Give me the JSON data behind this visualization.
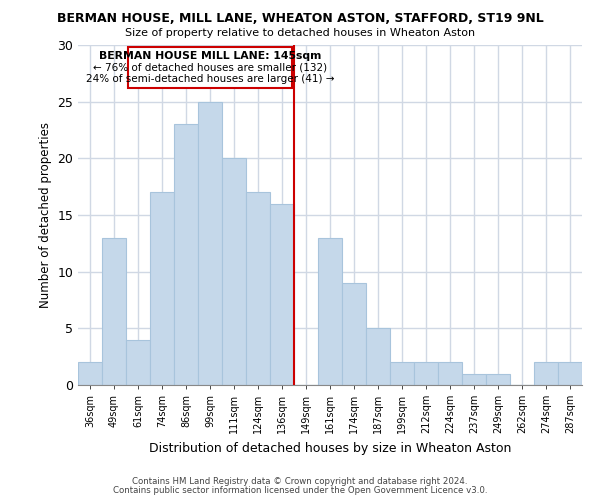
{
  "title": "BERMAN HOUSE, MILL LANE, WHEATON ASTON, STAFFORD, ST19 9NL",
  "subtitle": "Size of property relative to detached houses in Wheaton Aston",
  "xlabel": "Distribution of detached houses by size in Wheaton Aston",
  "ylabel": "Number of detached properties",
  "bin_labels": [
    "36sqm",
    "49sqm",
    "61sqm",
    "74sqm",
    "86sqm",
    "99sqm",
    "111sqm",
    "124sqm",
    "136sqm",
    "149sqm",
    "161sqm",
    "174sqm",
    "187sqm",
    "199sqm",
    "212sqm",
    "224sqm",
    "237sqm",
    "249sqm",
    "262sqm",
    "274sqm",
    "287sqm"
  ],
  "bar_heights": [
    2,
    13,
    4,
    17,
    23,
    25,
    20,
    17,
    16,
    0,
    13,
    9,
    5,
    2,
    2,
    2,
    1,
    1,
    0,
    2,
    2
  ],
  "bar_color": "#c5d8ea",
  "bar_edge_color": "#a8c4dc",
  "vline_color": "#cc0000",
  "ylim": [
    0,
    30
  ],
  "yticks": [
    0,
    5,
    10,
    15,
    20,
    25,
    30
  ],
  "annotation_title": "BERMAN HOUSE MILL LANE: 145sqm",
  "annotation_line1": "← 76% of detached houses are smaller (132)",
  "annotation_line2": "24% of semi-detached houses are larger (41) →",
  "annotation_box_color": "#ffffff",
  "annotation_box_edge": "#cc0000",
  "footer_line1": "Contains HM Land Registry data © Crown copyright and database right 2024.",
  "footer_line2": "Contains public sector information licensed under the Open Government Licence v3.0.",
  "background_color": "#ffffff",
  "grid_color": "#d0d8e4",
  "vline_index": 9
}
